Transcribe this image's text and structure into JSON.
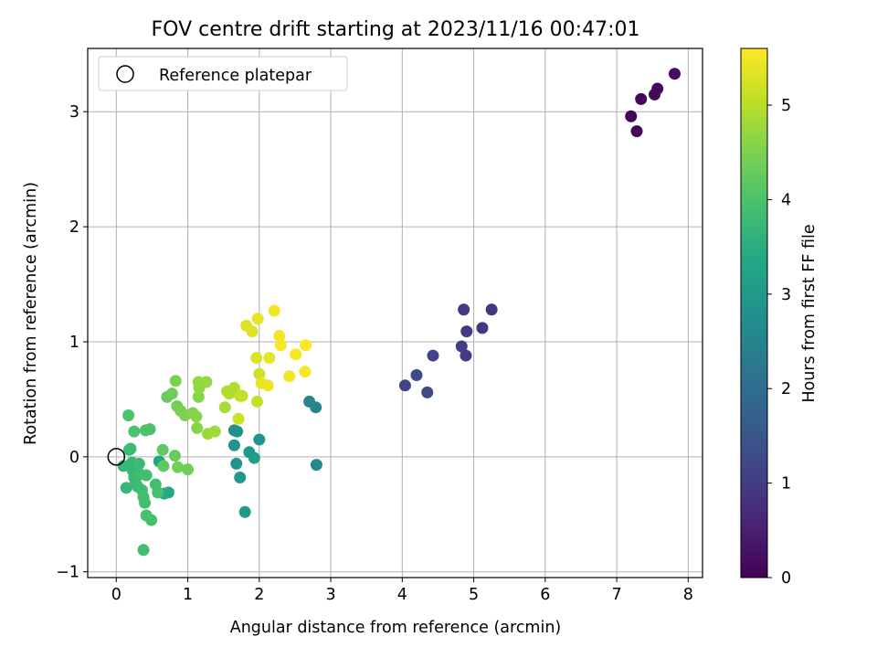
{
  "chart_data": {
    "type": "scatter",
    "title": "FOV centre drift starting at 2023/11/16 00:47:01",
    "xlabel": "Angular distance from reference (arcmin)",
    "ylabel": "Rotation from reference (arcmin)",
    "xlim": [
      -0.4,
      8.2
    ],
    "ylim": [
      -1.05,
      3.55
    ],
    "xticks": [
      0,
      1,
      2,
      3,
      4,
      5,
      6,
      7,
      8
    ],
    "yticks": [
      -1,
      0,
      1,
      2,
      3
    ],
    "grid": true,
    "legend": {
      "position": "upper-left",
      "entries": [
        "Reference platepar"
      ]
    },
    "reference_point": {
      "x": 0,
      "y": 0,
      "label": "Reference platepar"
    },
    "colorbar": {
      "label": "Hours from first FF file",
      "colormap": "viridis",
      "range": [
        0,
        5.6
      ],
      "ticks": [
        0,
        1,
        2,
        3,
        4,
        5
      ]
    },
    "points": [
      {
        "x": 7.2,
        "y": 2.96,
        "h": 0.05
      },
      {
        "x": 7.28,
        "y": 2.83,
        "h": 0.08
      },
      {
        "x": 7.34,
        "y": 3.11,
        "h": 0.1
      },
      {
        "x": 7.53,
        "y": 3.15,
        "h": 0.12
      },
      {
        "x": 7.57,
        "y": 3.2,
        "h": 0.15
      },
      {
        "x": 7.81,
        "y": 3.33,
        "h": 0.18
      },
      {
        "x": 4.04,
        "y": 0.62,
        "h": 1.15
      },
      {
        "x": 4.2,
        "y": 0.71,
        "h": 1.2
      },
      {
        "x": 4.35,
        "y": 0.56,
        "h": 1.25
      },
      {
        "x": 4.43,
        "y": 0.88,
        "h": 1.1
      },
      {
        "x": 4.83,
        "y": 0.96,
        "h": 1.0
      },
      {
        "x": 4.86,
        "y": 1.28,
        "h": 0.95
      },
      {
        "x": 4.89,
        "y": 0.88,
        "h": 1.0
      },
      {
        "x": 4.9,
        "y": 1.09,
        "h": 0.95
      },
      {
        "x": 5.12,
        "y": 1.12,
        "h": 0.9
      },
      {
        "x": 5.25,
        "y": 1.28,
        "h": 0.9
      },
      {
        "x": 2.7,
        "y": 0.48,
        "h": 2.5
      },
      {
        "x": 2.79,
        "y": 0.43,
        "h": 2.5
      },
      {
        "x": 2.8,
        "y": -0.07,
        "h": 2.6
      },
      {
        "x": 1.65,
        "y": 0.23,
        "h": 2.7
      },
      {
        "x": 1.69,
        "y": 0.22,
        "h": 2.8
      },
      {
        "x": 1.65,
        "y": 0.1,
        "h": 2.9
      },
      {
        "x": 1.68,
        "y": -0.06,
        "h": 2.9
      },
      {
        "x": 1.73,
        "y": -0.18,
        "h": 3.0
      },
      {
        "x": 1.8,
        "y": -0.48,
        "h": 3.0
      },
      {
        "x": 1.86,
        "y": 0.04,
        "h": 3.0
      },
      {
        "x": 1.93,
        "y": -0.01,
        "h": 3.1
      },
      {
        "x": 2.0,
        "y": 0.15,
        "h": 2.9
      },
      {
        "x": 0.6,
        "y": -0.04,
        "h": 3.3
      },
      {
        "x": 0.67,
        "y": -0.32,
        "h": 3.4
      },
      {
        "x": 0.73,
        "y": -0.31,
        "h": 3.4
      },
      {
        "x": 0.1,
        "y": -0.08,
        "h": 3.7
      },
      {
        "x": 0.14,
        "y": -0.27,
        "h": 3.7
      },
      {
        "x": 0.18,
        "y": 0.06,
        "h": 3.8
      },
      {
        "x": 0.2,
        "y": 0.07,
        "h": 3.8
      },
      {
        "x": 0.22,
        "y": -0.05,
        "h": 3.7
      },
      {
        "x": 0.23,
        "y": -0.12,
        "h": 3.7
      },
      {
        "x": 0.25,
        "y": -0.18,
        "h": 3.75
      },
      {
        "x": 0.27,
        "y": -0.22,
        "h": 3.75
      },
      {
        "x": 0.3,
        "y": -0.26,
        "h": 3.8
      },
      {
        "x": 0.32,
        "y": -0.06,
        "h": 3.8
      },
      {
        "x": 0.33,
        "y": -0.15,
        "h": 3.85
      },
      {
        "x": 0.36,
        "y": -0.29,
        "h": 3.85
      },
      {
        "x": 0.38,
        "y": -0.35,
        "h": 3.9
      },
      {
        "x": 0.4,
        "y": -0.4,
        "h": 3.9
      },
      {
        "x": 0.42,
        "y": -0.16,
        "h": 3.9
      },
      {
        "x": 0.42,
        "y": -0.51,
        "h": 3.95
      },
      {
        "x": 0.49,
        "y": -0.55,
        "h": 3.95
      },
      {
        "x": 0.38,
        "y": -0.81,
        "h": 3.9
      },
      {
        "x": 0.55,
        "y": -0.24,
        "h": 3.9
      },
      {
        "x": 0.58,
        "y": -0.31,
        "h": 3.95
      },
      {
        "x": 0.17,
        "y": 0.36,
        "h": 4.0
      },
      {
        "x": 0.25,
        "y": 0.22,
        "h": 4.0
      },
      {
        "x": 0.41,
        "y": 0.23,
        "h": 4.0
      },
      {
        "x": 0.47,
        "y": 0.24,
        "h": 4.0
      },
      {
        "x": 0.65,
        "y": 0.06,
        "h": 4.2
      },
      {
        "x": 0.66,
        "y": -0.08,
        "h": 4.2
      },
      {
        "x": 0.82,
        "y": 0.01,
        "h": 4.3
      },
      {
        "x": 0.86,
        "y": -0.09,
        "h": 4.4
      },
      {
        "x": 1.0,
        "y": -0.11,
        "h": 4.4
      },
      {
        "x": 0.71,
        "y": 0.52,
        "h": 4.3
      },
      {
        "x": 0.78,
        "y": 0.55,
        "h": 4.35
      },
      {
        "x": 0.85,
        "y": 0.44,
        "h": 4.4
      },
      {
        "x": 0.9,
        "y": 0.4,
        "h": 4.45
      },
      {
        "x": 0.83,
        "y": 0.66,
        "h": 4.5
      },
      {
        "x": 0.96,
        "y": 0.36,
        "h": 4.5
      },
      {
        "x": 1.07,
        "y": 0.38,
        "h": 4.55
      },
      {
        "x": 1.12,
        "y": 0.35,
        "h": 4.6
      },
      {
        "x": 1.13,
        "y": 0.25,
        "h": 4.6
      },
      {
        "x": 1.15,
        "y": 0.52,
        "h": 4.6
      },
      {
        "x": 1.16,
        "y": 0.6,
        "h": 4.65
      },
      {
        "x": 1.15,
        "y": 0.65,
        "h": 4.7
      },
      {
        "x": 1.26,
        "y": 0.65,
        "h": 4.7
      },
      {
        "x": 1.28,
        "y": 0.2,
        "h": 4.75
      },
      {
        "x": 1.38,
        "y": 0.22,
        "h": 4.8
      },
      {
        "x": 1.52,
        "y": 0.43,
        "h": 4.85
      },
      {
        "x": 1.55,
        "y": 0.57,
        "h": 4.9
      },
      {
        "x": 1.58,
        "y": 0.55,
        "h": 4.95
      },
      {
        "x": 1.65,
        "y": 0.6,
        "h": 4.95
      },
      {
        "x": 1.73,
        "y": 0.53,
        "h": 5.0
      },
      {
        "x": 1.76,
        "y": 0.53,
        "h": 5.1
      },
      {
        "x": 1.71,
        "y": 0.33,
        "h": 5.15
      },
      {
        "x": 1.97,
        "y": 0.48,
        "h": 5.1
      },
      {
        "x": 2.0,
        "y": 0.72,
        "h": 5.2
      },
      {
        "x": 1.82,
        "y": 1.14,
        "h": 5.3
      },
      {
        "x": 1.9,
        "y": 1.09,
        "h": 5.35
      },
      {
        "x": 1.96,
        "y": 0.86,
        "h": 5.3
      },
      {
        "x": 2.03,
        "y": 0.64,
        "h": 5.4
      },
      {
        "x": 2.12,
        "y": 0.62,
        "h": 5.45
      },
      {
        "x": 2.14,
        "y": 0.86,
        "h": 5.4
      },
      {
        "x": 1.98,
        "y": 1.2,
        "h": 5.4
      },
      {
        "x": 2.21,
        "y": 1.27,
        "h": 5.5
      },
      {
        "x": 2.28,
        "y": 1.05,
        "h": 5.5
      },
      {
        "x": 2.3,
        "y": 0.97,
        "h": 5.55
      },
      {
        "x": 2.42,
        "y": 0.7,
        "h": 5.5
      },
      {
        "x": 2.51,
        "y": 0.89,
        "h": 5.55
      },
      {
        "x": 2.64,
        "y": 0.74,
        "h": 5.55
      },
      {
        "x": 2.65,
        "y": 0.97,
        "h": 5.6
      }
    ]
  }
}
